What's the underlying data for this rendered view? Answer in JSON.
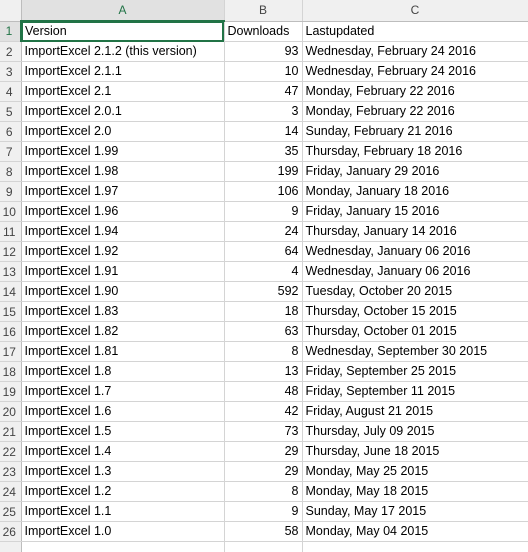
{
  "columns": [
    "A",
    "B",
    "C"
  ],
  "selected_column": "A",
  "selected_row": 1,
  "header_row": {
    "row": "1",
    "version": "Version",
    "downloads": "Downloads",
    "updated": "Lastupdated"
  },
  "rows": [
    {
      "row": "2",
      "version": "ImportExcel 2.1.2 (this version)",
      "downloads": "93",
      "updated": "Wednesday, February 24 2016"
    },
    {
      "row": "3",
      "version": "ImportExcel 2.1.1",
      "downloads": "10",
      "updated": "Wednesday, February 24 2016"
    },
    {
      "row": "4",
      "version": "ImportExcel 2.1",
      "downloads": "47",
      "updated": "Monday, February 22 2016"
    },
    {
      "row": "5",
      "version": "ImportExcel 2.0.1",
      "downloads": "3",
      "updated": "Monday, February 22 2016"
    },
    {
      "row": "6",
      "version": "ImportExcel 2.0",
      "downloads": "14",
      "updated": "Sunday, February 21 2016"
    },
    {
      "row": "7",
      "version": "ImportExcel 1.99",
      "downloads": "35",
      "updated": "Thursday, February 18 2016"
    },
    {
      "row": "8",
      "version": "ImportExcel 1.98",
      "downloads": "199",
      "updated": "Friday, January 29 2016"
    },
    {
      "row": "9",
      "version": "ImportExcel 1.97",
      "downloads": "106",
      "updated": "Monday, January 18 2016"
    },
    {
      "row": "10",
      "version": "ImportExcel 1.96",
      "downloads": "9",
      "updated": "Friday, January 15 2016"
    },
    {
      "row": "11",
      "version": "ImportExcel 1.94",
      "downloads": "24",
      "updated": "Thursday, January 14 2016"
    },
    {
      "row": "12",
      "version": "ImportExcel 1.92",
      "downloads": "64",
      "updated": "Wednesday, January 06 2016"
    },
    {
      "row": "13",
      "version": "ImportExcel 1.91",
      "downloads": "4",
      "updated": "Wednesday, January 06 2016"
    },
    {
      "row": "14",
      "version": "ImportExcel 1.90",
      "downloads": "592",
      "updated": "Tuesday, October 20 2015"
    },
    {
      "row": "15",
      "version": "ImportExcel 1.83",
      "downloads": "18",
      "updated": "Thursday, October 15 2015"
    },
    {
      "row": "16",
      "version": "ImportExcel 1.82",
      "downloads": "63",
      "updated": "Thursday, October 01 2015"
    },
    {
      "row": "17",
      "version": "ImportExcel 1.81",
      "downloads": "8",
      "updated": "Wednesday, September 30 2015"
    },
    {
      "row": "18",
      "version": "ImportExcel 1.8",
      "downloads": "13",
      "updated": "Friday, September 25 2015"
    },
    {
      "row": "19",
      "version": "ImportExcel 1.7",
      "downloads": "48",
      "updated": "Friday, September 11 2015"
    },
    {
      "row": "20",
      "version": "ImportExcel 1.6",
      "downloads": "42",
      "updated": "Friday, August 21 2015"
    },
    {
      "row": "21",
      "version": "ImportExcel 1.5",
      "downloads": "73",
      "updated": "Thursday, July 09 2015"
    },
    {
      "row": "22",
      "version": "ImportExcel 1.4",
      "downloads": "29",
      "updated": "Thursday, June 18 2015"
    },
    {
      "row": "23",
      "version": "ImportExcel 1.3",
      "downloads": "29",
      "updated": "Monday, May 25 2015"
    },
    {
      "row": "24",
      "version": "ImportExcel 1.2",
      "downloads": "8",
      "updated": "Monday, May 18 2015"
    },
    {
      "row": "25",
      "version": "ImportExcel 1.1",
      "downloads": "9",
      "updated": "Sunday, May 17 2015"
    },
    {
      "row": "26",
      "version": "ImportExcel 1.0",
      "downloads": "58",
      "updated": "Monday, May 04 2015"
    }
  ],
  "colors": {
    "accent": "#217346",
    "gridline": "#d4d4d4",
    "header_bg": "#f0f0f0"
  }
}
